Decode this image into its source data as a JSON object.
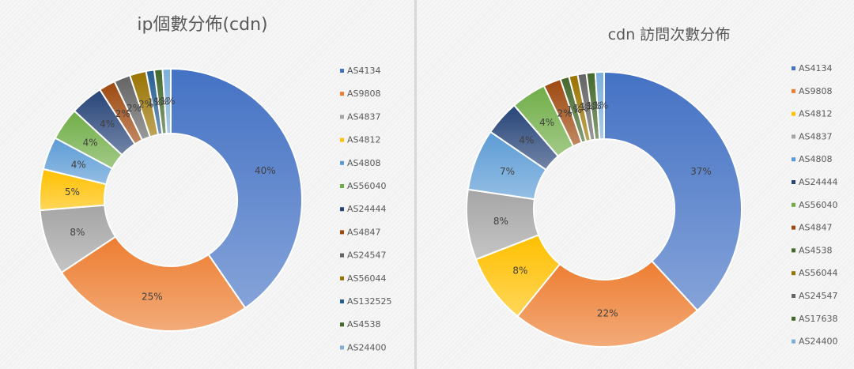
{
  "colors": {
    "AS4134": "#4472c4",
    "AS9808": "#ed7d31",
    "AS4837": "#a5a5a5",
    "AS4812": "#ffc000",
    "AS4808": "#5b9bd5",
    "AS56040": "#70ad47",
    "AS24444": "#264478",
    "AS4847": "#9e480e",
    "AS24547": "#636363",
    "AS56044": "#997300",
    "AS132525": "#255e91",
    "AS4538": "#43682b",
    "AS24400": "#7cafdd",
    "AS17638": "#43682b"
  },
  "chart_data": [
    {
      "type": "pie",
      "title": "ip個數分佈(cdn)",
      "legend_position": "right",
      "donut": true,
      "labels": [
        "AS4134",
        "AS9808",
        "AS4837",
        "AS4812",
        "AS4808",
        "AS56040",
        "AS24444",
        "AS4847",
        "AS24547",
        "AS56044",
        "AS132525",
        "AS4538",
        "AS24400"
      ],
      "values": [
        40,
        25,
        8,
        5,
        4,
        4,
        4,
        2,
        2,
        2,
        1,
        1,
        1
      ],
      "display_labels": [
        "40%",
        "25%",
        "8%",
        "5%",
        "4%",
        "4%",
        "4%",
        "2%",
        "2%",
        "2%",
        "1%",
        "1%",
        "1%"
      ]
    },
    {
      "type": "pie",
      "title": "cdn 訪問次數分佈",
      "legend_position": "right",
      "donut": true,
      "labels": [
        "AS4134",
        "AS9808",
        "AS4812",
        "AS4837",
        "AS4808",
        "AS24444",
        "AS56040",
        "AS4847",
        "AS4538",
        "AS56044",
        "AS24547",
        "AS17638",
        "AS24400"
      ],
      "values": [
        37,
        22,
        8,
        8,
        7,
        4,
        4,
        2,
        1,
        1,
        1,
        1,
        1
      ],
      "display_labels": [
        "37%",
        "22%",
        "8%",
        "8%",
        "7%",
        "4%",
        "4%",
        "2%",
        "1%",
        "1%",
        "1%",
        "1%",
        "1%"
      ]
    }
  ]
}
